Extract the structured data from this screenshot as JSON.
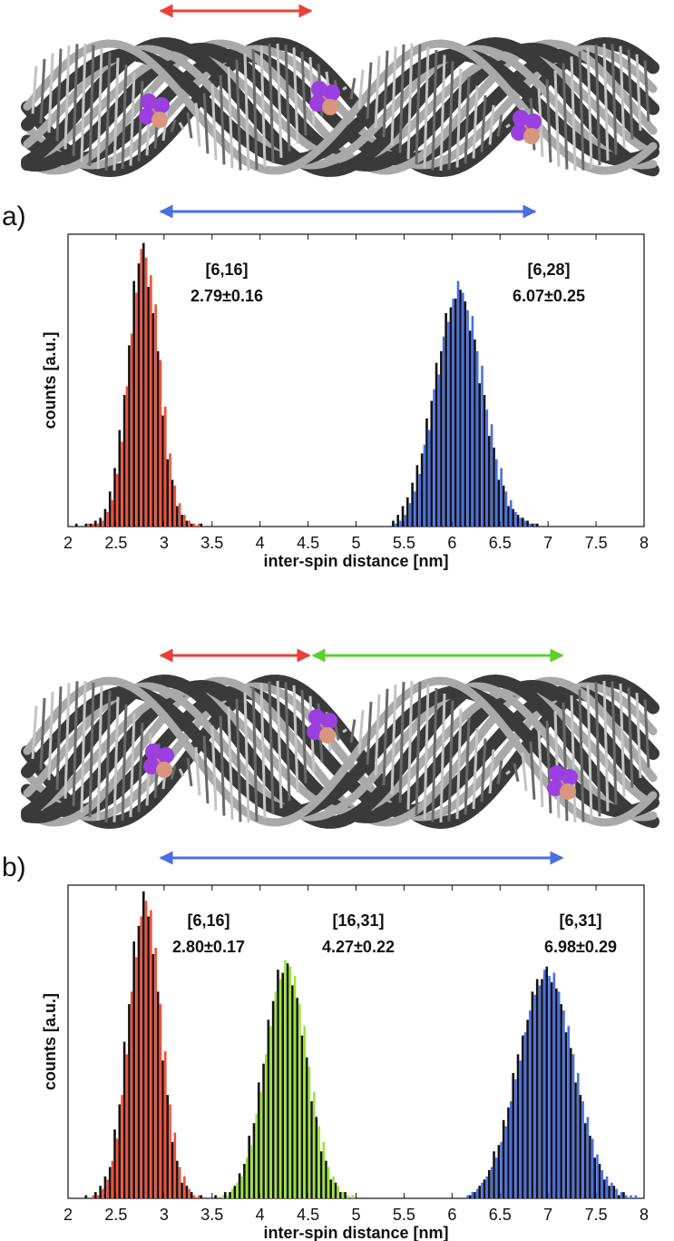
{
  "chart_data": [
    {
      "type": "bar",
      "panel_label": "a)",
      "x_label": "inter-spin distance [nm]",
      "y_label": "counts [a.u.]",
      "xlim": [
        2,
        8
      ],
      "xticks": [
        2,
        2.5,
        3,
        3.5,
        4,
        4.5,
        5,
        5.5,
        6,
        6.5,
        7,
        7.5,
        8
      ],
      "ylim": [
        0,
        100
      ],
      "annotations": [
        [
          "[6,16]",
          "2.79±0.16"
        ],
        [
          "[6,28]",
          "6.07±0.25"
        ]
      ],
      "series": [
        {
          "color": "#111111",
          "x": [
            2.1,
            2.15,
            2.2,
            2.25,
            2.3,
            2.35,
            2.4,
            2.45,
            2.5,
            2.55,
            2.6,
            2.65,
            2.7,
            2.75,
            2.8,
            2.85,
            2.9,
            2.95,
            3,
            3.05,
            3.1,
            3.15,
            3.2,
            3.25,
            3.3,
            3.35,
            3.4
          ],
          "values": [
            1,
            0,
            1,
            1,
            2,
            3,
            6,
            12,
            20,
            33,
            45,
            62,
            84,
            90,
            97,
            82,
            73,
            60,
            38,
            23,
            16,
            7,
            4,
            2,
            1,
            0,
            1
          ]
        },
        {
          "color": "#f0503a",
          "x": [
            2.1,
            2.15,
            2.2,
            2.25,
            2.3,
            2.35,
            2.4,
            2.45,
            2.5,
            2.55,
            2.6,
            2.65,
            2.7,
            2.75,
            2.8,
            2.85,
            2.9,
            2.95,
            3,
            3.05,
            3.1,
            3.15,
            3.2,
            3.25,
            3.3,
            3.35,
            3.4
          ],
          "values": [
            0,
            0,
            1,
            1,
            1,
            2,
            5,
            9,
            18,
            29,
            48,
            66,
            80,
            95,
            92,
            86,
            76,
            57,
            41,
            25,
            14,
            8,
            4,
            2,
            1,
            1,
            0
          ]
        },
        {
          "color": "#111111",
          "x": [
            5.4,
            5.45,
            5.5,
            5.55,
            5.6,
            5.65,
            5.7,
            5.75,
            5.8,
            5.85,
            5.9,
            5.95,
            6,
            6.05,
            6.1,
            6.15,
            6.2,
            6.25,
            6.3,
            6.35,
            6.4,
            6.45,
            6.5,
            6.55,
            6.6,
            6.65,
            6.7,
            6.75,
            6.8,
            6.85,
            6.9
          ],
          "values": [
            2,
            4,
            7,
            10,
            15,
            21,
            25,
            37,
            43,
            56,
            60,
            73,
            75,
            78,
            81,
            77,
            67,
            64,
            49,
            45,
            31,
            27,
            16,
            14,
            7,
            6,
            4,
            3,
            2,
            1,
            1
          ]
        },
        {
          "color": "#4a6fe0",
          "x": [
            5.4,
            5.45,
            5.5,
            5.55,
            5.6,
            5.65,
            5.7,
            5.75,
            5.8,
            5.85,
            5.9,
            5.95,
            6,
            6.05,
            6.1,
            6.15,
            6.2,
            6.25,
            6.3,
            6.35,
            6.4,
            6.45,
            6.5,
            6.55,
            6.6,
            6.65,
            6.7,
            6.75,
            6.8,
            6.85,
            6.9
          ],
          "values": [
            1,
            2,
            4,
            8,
            12,
            18,
            28,
            33,
            47,
            52,
            65,
            70,
            78,
            84,
            80,
            74,
            72,
            60,
            55,
            40,
            35,
            23,
            20,
            12,
            9,
            5,
            3,
            2,
            1,
            1,
            0
          ]
        }
      ]
    },
    {
      "type": "bar",
      "panel_label": "b)",
      "x_label": "inter-spin distance [nm]",
      "y_label": "counts [a.u.]",
      "xlim": [
        2,
        8
      ],
      "xticks": [
        2,
        2.5,
        3,
        3.5,
        4,
        4.5,
        5,
        5.5,
        6,
        6.5,
        7,
        7.5,
        8
      ],
      "ylim": [
        0,
        100
      ],
      "annotations": [
        [
          "[6,16]",
          "2.80±0.17"
        ],
        [
          "[16,31]",
          "4.27±0.22"
        ],
        [
          "[6,31]",
          "6.98±0.29"
        ]
      ],
      "series": [
        {
          "color": "#111111",
          "x": [
            2.2,
            2.25,
            2.3,
            2.35,
            2.4,
            2.45,
            2.5,
            2.55,
            2.6,
            2.65,
            2.7,
            2.75,
            2.8,
            2.85,
            2.9,
            2.95,
            3,
            3.05,
            3.1,
            3.15,
            3.2,
            3.25,
            3.3,
            3.35,
            3.4,
            3.45
          ],
          "values": [
            1,
            0,
            2,
            4,
            7,
            10,
            22,
            30,
            50,
            62,
            82,
            87,
            98,
            90,
            78,
            66,
            44,
            33,
            18,
            12,
            5,
            4,
            2,
            0,
            1,
            0
          ]
        },
        {
          "color": "#f0503a",
          "x": [
            2.2,
            2.25,
            2.3,
            2.35,
            2.4,
            2.45,
            2.5,
            2.55,
            2.6,
            2.65,
            2.7,
            2.75,
            2.8,
            2.85,
            2.9,
            2.95,
            3,
            3.05,
            3.1,
            3.15,
            3.2,
            3.25,
            3.3,
            3.35,
            3.4,
            3.45
          ],
          "values": [
            0,
            1,
            1,
            3,
            6,
            12,
            19,
            33,
            46,
            66,
            77,
            90,
            95,
            92,
            80,
            62,
            47,
            30,
            21,
            10,
            7,
            3,
            1,
            1,
            0,
            0
          ]
        },
        {
          "color": "#111111",
          "x": [
            3.55,
            3.6,
            3.65,
            3.7,
            3.75,
            3.8,
            3.85,
            3.9,
            3.95,
            4,
            4.05,
            4.1,
            4.15,
            4.2,
            4.25,
            4.3,
            4.35,
            4.4,
            4.45,
            4.5,
            4.55,
            4.6,
            4.65,
            4.7,
            4.75,
            4.8,
            4.85,
            4.9,
            4.95,
            5
          ],
          "values": [
            1,
            0,
            2,
            2,
            4,
            8,
            11,
            20,
            24,
            37,
            43,
            57,
            63,
            73,
            72,
            75,
            68,
            64,
            52,
            45,
            31,
            26,
            15,
            12,
            6,
            5,
            2,
            2,
            0,
            0
          ]
        },
        {
          "color": "#9be33a",
          "x": [
            3.55,
            3.6,
            3.65,
            3.7,
            3.75,
            3.8,
            3.85,
            3.9,
            3.95,
            4,
            4.05,
            4.1,
            4.15,
            4.2,
            4.25,
            4.3,
            4.35,
            4.4,
            4.45,
            4.5,
            4.55,
            4.6,
            4.65,
            4.7,
            4.75,
            4.8,
            4.85,
            4.9,
            4.95,
            5
          ],
          "values": [
            0,
            1,
            1,
            3,
            5,
            7,
            13,
            17,
            27,
            34,
            46,
            55,
            66,
            70,
            76,
            74,
            71,
            62,
            55,
            42,
            34,
            23,
            18,
            10,
            7,
            4,
            2,
            1,
            1,
            0
          ]
        },
        {
          "color": "#111111",
          "x": [
            6.15,
            6.2,
            6.25,
            6.3,
            6.35,
            6.4,
            6.45,
            6.5,
            6.55,
            6.6,
            6.65,
            6.7,
            6.75,
            6.8,
            6.85,
            6.9,
            6.95,
            7,
            7.05,
            7.1,
            7.15,
            7.2,
            7.25,
            7.3,
            7.35,
            7.4,
            7.45,
            7.5,
            7.55,
            7.6,
            7.65,
            7.7,
            7.75,
            7.8,
            7.85,
            7.9
          ],
          "values": [
            0,
            1,
            2,
            4,
            6,
            9,
            15,
            17,
            25,
            29,
            40,
            46,
            52,
            57,
            66,
            70,
            70,
            74,
            69,
            67,
            62,
            53,
            48,
            37,
            33,
            24,
            20,
            13,
            11,
            6,
            4,
            4,
            1,
            2,
            0,
            0
          ]
        },
        {
          "color": "#4a6fe0",
          "x": [
            6.15,
            6.2,
            6.25,
            6.3,
            6.35,
            6.4,
            6.45,
            6.5,
            6.55,
            6.6,
            6.65,
            6.7,
            6.75,
            6.8,
            6.85,
            6.9,
            6.95,
            7,
            7.05,
            7.1,
            7.15,
            7.2,
            7.25,
            7.3,
            7.35,
            7.4,
            7.45,
            7.5,
            7.55,
            7.6,
            7.65,
            7.7,
            7.75,
            7.8,
            7.85,
            7.9
          ],
          "values": [
            1,
            2,
            3,
            5,
            7,
            10,
            13,
            18,
            23,
            31,
            38,
            44,
            53,
            60,
            65,
            68,
            73,
            71,
            72,
            66,
            60,
            55,
            46,
            40,
            31,
            26,
            19,
            14,
            9,
            7,
            5,
            3,
            2,
            1,
            1,
            1
          ]
        }
      ]
    }
  ]
}
